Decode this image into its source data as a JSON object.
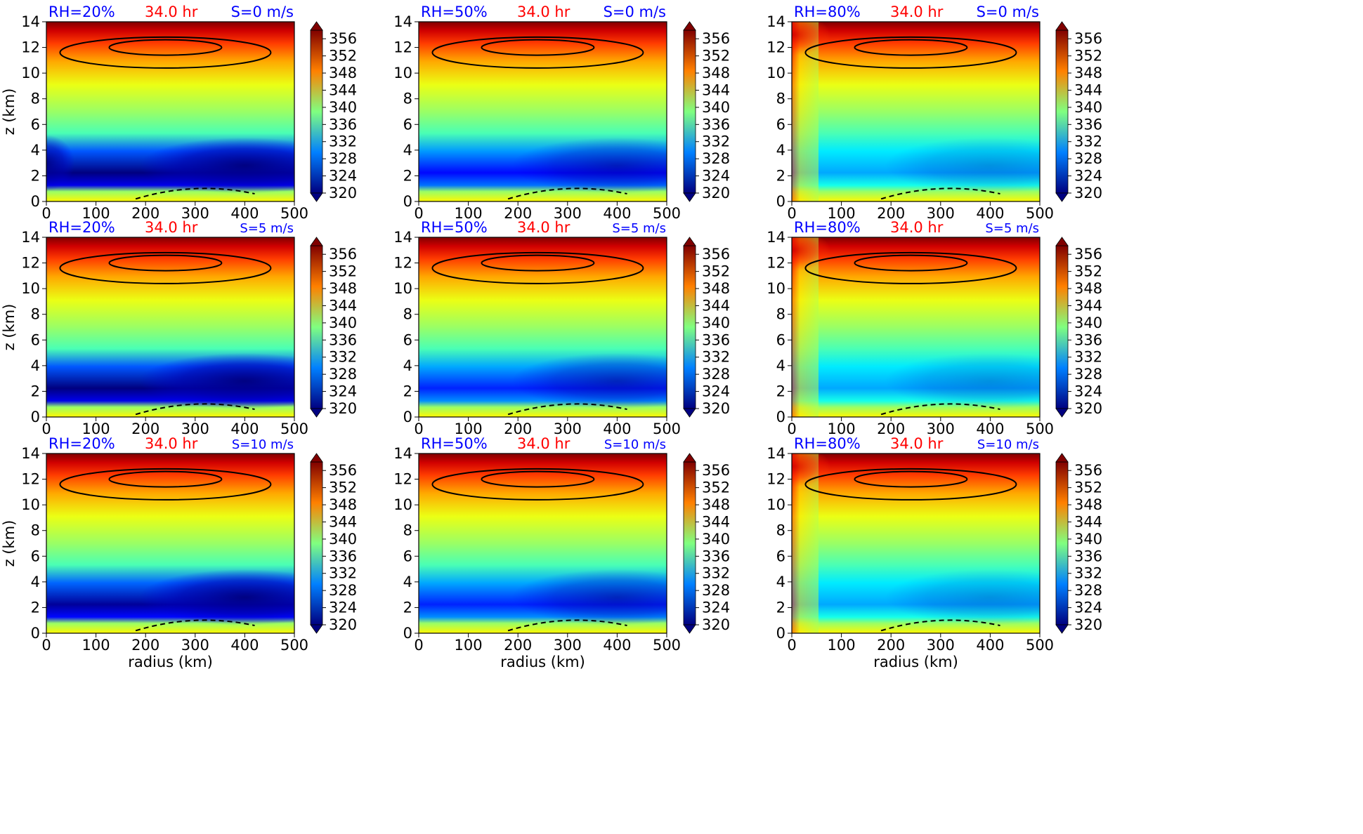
{
  "figure": {
    "time_label": "34.0 hr",
    "xlabel": "radius (km)",
    "ylabel": "z (km)",
    "colors": {
      "rh_title": "#0000ff",
      "time_title": "#ff0000",
      "shear_title": "#0000ff",
      "contour": "#000000"
    }
  },
  "chart_data": {
    "type": "heatmap",
    "layout": "3x3 panel grid",
    "rows": [
      "S=0 m/s",
      "S=5 m/s",
      "S=10 m/s"
    ],
    "columns": [
      "RH=20%",
      "RH=50%",
      "RH=80%"
    ],
    "x": {
      "label": "radius (km)",
      "range": [
        0,
        500
      ],
      "ticks": [
        0,
        100,
        200,
        300,
        400,
        500
      ]
    },
    "y": {
      "label": "z (km)",
      "range": [
        0,
        14
      ],
      "ticks": [
        0,
        2,
        4,
        6,
        8,
        10,
        12,
        14
      ]
    },
    "colorbar": {
      "range": [
        320,
        358
      ],
      "ticks": [
        320,
        324,
        328,
        332,
        336,
        340,
        344,
        348,
        352,
        356
      ],
      "colormap": "jet",
      "extend": "both"
    },
    "contours": {
      "positive": "solid black",
      "negative": "dashed black"
    },
    "panels": [
      {
        "rh": "RH=20%",
        "time": "34.0 hr",
        "shear": "S=0 m/s",
        "rh_pct": 20,
        "shear_ms": 0,
        "min_value": 320,
        "max_value": 358
      },
      {
        "rh": "RH=50%",
        "time": "34.0 hr",
        "shear": "S=0 m/s",
        "rh_pct": 50,
        "shear_ms": 0,
        "min_value": 325,
        "max_value": 358
      },
      {
        "rh": "RH=80%",
        "time": "34.0 hr",
        "shear": "S=0 m/s",
        "rh_pct": 80,
        "shear_ms": 0,
        "min_value": 331,
        "max_value": 358
      },
      {
        "rh": "RH=20%",
        "time": "34.0 hr",
        "shear": "S=5 m/s",
        "rh_pct": 20,
        "shear_ms": 5,
        "min_value": 320,
        "max_value": 358
      },
      {
        "rh": "RH=50%",
        "time": "34.0 hr",
        "shear": "S=5 m/s",
        "rh_pct": 50,
        "shear_ms": 5,
        "min_value": 326,
        "max_value": 358
      },
      {
        "rh": "RH=80%",
        "time": "34.0 hr",
        "shear": "S=5 m/s",
        "rh_pct": 80,
        "shear_ms": 5,
        "min_value": 331,
        "max_value": 358
      },
      {
        "rh": "RH=20%",
        "time": "34.0 hr",
        "shear": "S=10 m/s",
        "rh_pct": 20,
        "shear_ms": 10,
        "min_value": 321,
        "max_value": 358
      },
      {
        "rh": "RH=50%",
        "time": "34.0 hr",
        "shear": "S=10 m/s",
        "rh_pct": 50,
        "shear_ms": 10,
        "min_value": 326,
        "max_value": 358
      },
      {
        "rh": "RH=80%",
        "time": "34.0 hr",
        "shear": "S=10 m/s",
        "rh_pct": 80,
        "shear_ms": 10,
        "min_value": 331,
        "max_value": 358
      }
    ]
  }
}
